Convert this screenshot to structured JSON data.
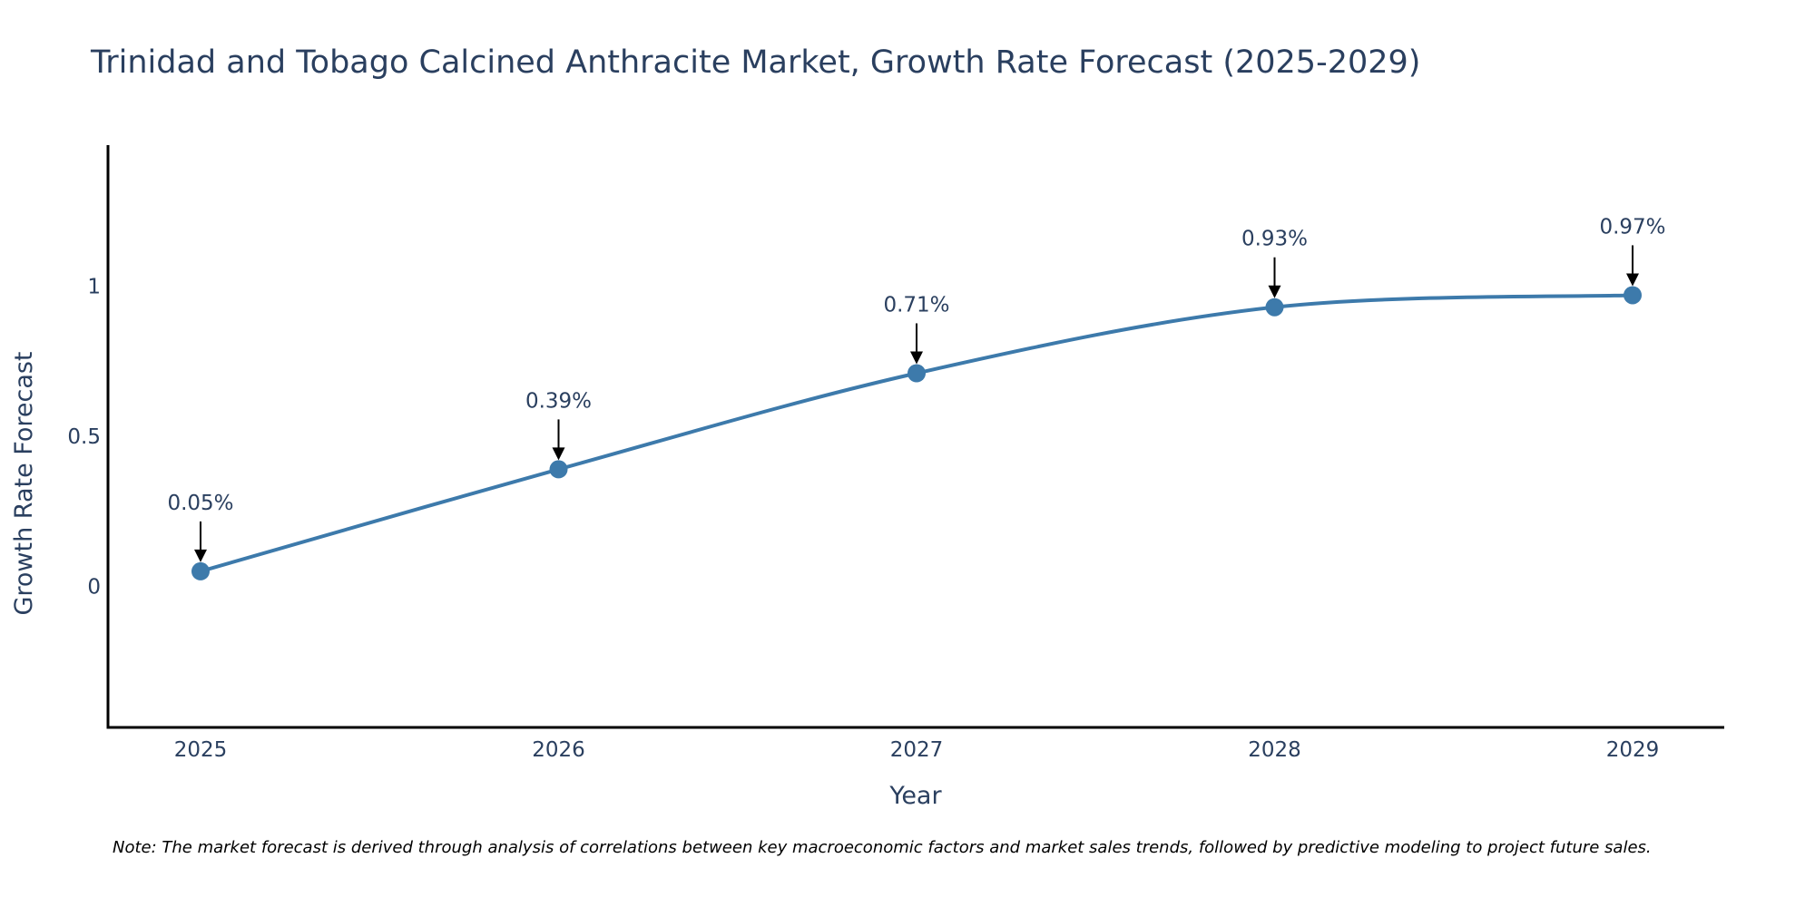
{
  "chart_data": {
    "type": "line",
    "title": "Trinidad and Tobago Calcined Anthracite Market, Growth Rate Forecast (2025-2029)",
    "xlabel": "Year",
    "ylabel": "Growth Rate Forecast",
    "categories": [
      "2025",
      "2026",
      "2027",
      "2028",
      "2029"
    ],
    "values": [
      0.05,
      0.39,
      0.71,
      0.93,
      0.97
    ],
    "data_labels": [
      "0.05%",
      "0.39%",
      "0.71%",
      "0.93%",
      "0.97%"
    ],
    "ylim": [
      -0.47,
      1.47
    ],
    "yticks": [
      0,
      0.5,
      1
    ],
    "ytick_labels": [
      "0",
      "0.5",
      "1"
    ],
    "line_color": "#3d7aab",
    "marker_color": "#3d7aab",
    "smooth": true,
    "grid": false
  },
  "note": "Note: The market forecast is derived through analysis of correlations between key macroeconomic factors and market sales trends, followed by predictive modeling to project future sales."
}
